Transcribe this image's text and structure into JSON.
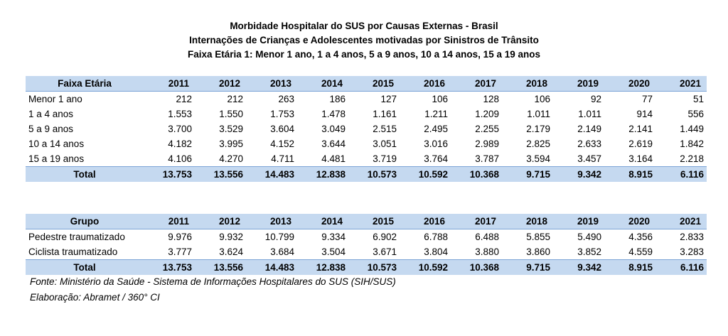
{
  "titles": {
    "line1": "Morbidade Hospitalar do SUS por Causas Externas - Brasil",
    "line2": "Internações de Crianças e Adolescentes motivadas por Sinistros de Trânsito",
    "line3": "Faixa Etária 1: Menor 1 ano, 1 a 4 anos, 5 a 9 anos, 10 a 14 anos, 15 a 19 anos"
  },
  "years": [
    "2011",
    "2012",
    "2013",
    "2014",
    "2015",
    "2016",
    "2017",
    "2018",
    "2019",
    "2020",
    "2021"
  ],
  "table1": {
    "header_label": "Faixa Etária",
    "rows": [
      {
        "label": "Menor 1 ano",
        "values": [
          "212",
          "212",
          "263",
          "186",
          "127",
          "106",
          "128",
          "106",
          "92",
          "77",
          "51"
        ]
      },
      {
        "label": "1 a 4 anos",
        "values": [
          "1.553",
          "1.550",
          "1.753",
          "1.478",
          "1.161",
          "1.211",
          "1.209",
          "1.011",
          "1.011",
          "914",
          "556"
        ]
      },
      {
        "label": "5 a 9 anos",
        "values": [
          "3.700",
          "3.529",
          "3.604",
          "3.049",
          "2.515",
          "2.495",
          "2.255",
          "2.179",
          "2.149",
          "2.141",
          "1.449"
        ]
      },
      {
        "label": "10 a 14 anos",
        "values": [
          "4.182",
          "3.995",
          "4.152",
          "3.644",
          "3.051",
          "3.016",
          "2.989",
          "2.825",
          "2.633",
          "2.619",
          "1.842"
        ]
      },
      {
        "label": "15 a 19 anos",
        "values": [
          "4.106",
          "4.270",
          "4.711",
          "4.481",
          "3.719",
          "3.764",
          "3.787",
          "3.594",
          "3.457",
          "3.164",
          "2.218"
        ]
      }
    ],
    "total": {
      "label": "Total",
      "values": [
        "13.753",
        "13.556",
        "14.483",
        "12.838",
        "10.573",
        "10.592",
        "10.368",
        "9.715",
        "9.342",
        "8.915",
        "6.116"
      ]
    }
  },
  "table2": {
    "header_label": "Grupo",
    "rows": [
      {
        "label": "Pedestre traumatizado",
        "values": [
          "9.976",
          "9.932",
          "10.799",
          "9.334",
          "6.902",
          "6.788",
          "6.488",
          "5.855",
          "5.490",
          "4.356",
          "2.833"
        ]
      },
      {
        "label": "Ciclista traumatizado",
        "values": [
          "3.777",
          "3.624",
          "3.684",
          "3.504",
          "3.671",
          "3.804",
          "3.880",
          "3.860",
          "3.852",
          "4.559",
          "3.283"
        ]
      }
    ],
    "total": {
      "label": "Total",
      "values": [
        "13.753",
        "13.556",
        "14.483",
        "12.838",
        "10.573",
        "10.592",
        "10.368",
        "9.715",
        "9.342",
        "8.915",
        "6.116"
      ]
    }
  },
  "footer": {
    "source": "Fonte: Ministério da Saúde - Sistema de Informações Hospitalares do SUS (SIH/SUS)",
    "credit": "Elaboração: Abramet / 360° CI"
  }
}
